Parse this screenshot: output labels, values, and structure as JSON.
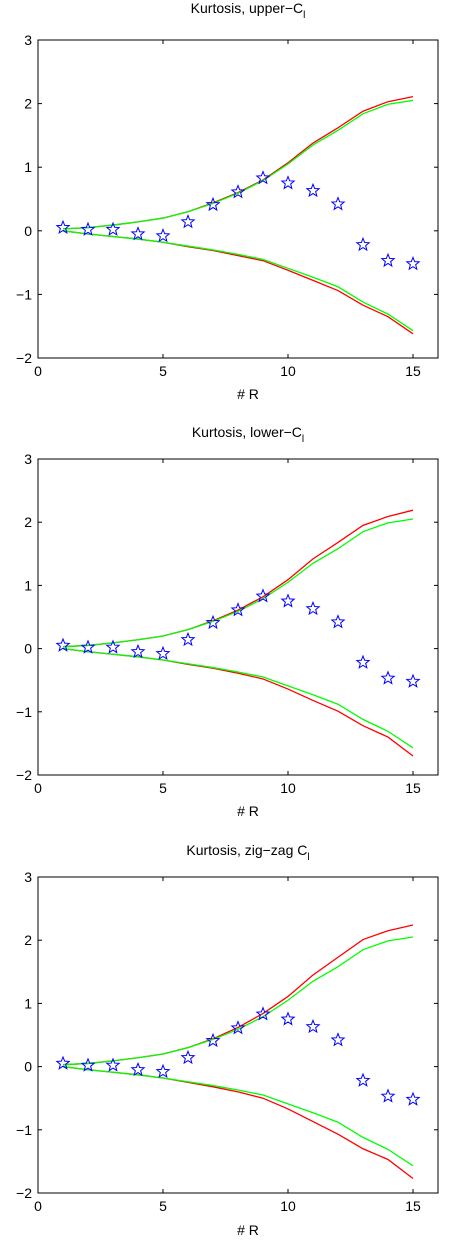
{
  "chart_data": [
    {
      "type": "line",
      "title_main": "Kurtosis, upper−C",
      "title_sub": "l",
      "xlabel": "# R",
      "xlim": [
        0,
        16
      ],
      "ylim": [
        -2,
        3
      ],
      "x_ticks": [
        "0",
        "5",
        "10",
        "15"
      ],
      "y_ticks": [
        "−2",
        "−1",
        "0",
        "1",
        "2",
        "3"
      ],
      "x_tick_values": [
        0,
        5,
        10,
        15
      ],
      "y_tick_values": [
        -2,
        -1,
        0,
        1,
        2,
        3
      ],
      "x": [
        1,
        2,
        3,
        4,
        5,
        6,
        7,
        8,
        9,
        10,
        11,
        12,
        13,
        14,
        15
      ],
      "series": [
        {
          "type": "line",
          "color": "#ff0000",
          "values": [
            0.03,
            0.05,
            0.09,
            0.14,
            0.2,
            0.3,
            0.44,
            0.6,
            0.8,
            1.07,
            1.38,
            1.62,
            1.88,
            2.03,
            2.11
          ]
        },
        {
          "type": "line",
          "color": "#00ff00",
          "values": [
            0.03,
            0.05,
            0.09,
            0.14,
            0.2,
            0.3,
            0.43,
            0.59,
            0.79,
            1.05,
            1.35,
            1.58,
            1.84,
            1.99,
            2.05
          ]
        },
        {
          "type": "line",
          "color": "#ff0000",
          "values": [
            0.0,
            -0.05,
            -0.09,
            -0.13,
            -0.18,
            -0.25,
            -0.31,
            -0.39,
            -0.47,
            -0.62,
            -0.78,
            -0.94,
            -1.17,
            -1.35,
            -1.62
          ]
        },
        {
          "type": "line",
          "color": "#00ff00",
          "values": [
            0.0,
            -0.05,
            -0.09,
            -0.13,
            -0.18,
            -0.24,
            -0.3,
            -0.37,
            -0.45,
            -0.59,
            -0.73,
            -0.88,
            -1.12,
            -1.31,
            -1.57
          ]
        },
        {
          "type": "scatter",
          "marker": "star",
          "color": "#0000ff",
          "values": [
            0.05,
            0.02,
            0.02,
            -0.05,
            -0.08,
            0.14,
            0.41,
            0.61,
            0.83,
            0.75,
            0.63,
            0.42,
            -0.22,
            -0.47,
            -0.52
          ]
        }
      ]
    },
    {
      "type": "line",
      "title_main": "Kurtosis, lower−C",
      "title_sub": "l",
      "xlabel": "# R",
      "xlim": [
        0,
        16
      ],
      "ylim": [
        -2,
        3
      ],
      "x_ticks": [
        "0",
        "5",
        "10",
        "15"
      ],
      "y_ticks": [
        "−2",
        "−1",
        "0",
        "1",
        "2",
        "3"
      ],
      "x_tick_values": [
        0,
        5,
        10,
        15
      ],
      "y_tick_values": [
        -2,
        -1,
        0,
        1,
        2,
        3
      ],
      "x": [
        1,
        2,
        3,
        4,
        5,
        6,
        7,
        8,
        9,
        10,
        11,
        12,
        13,
        14,
        15
      ],
      "series": [
        {
          "type": "line",
          "color": "#ff0000",
          "values": [
            0.03,
            0.05,
            0.09,
            0.14,
            0.2,
            0.3,
            0.44,
            0.61,
            0.82,
            1.09,
            1.42,
            1.68,
            1.95,
            2.09,
            2.19
          ]
        },
        {
          "type": "line",
          "color": "#00ff00",
          "values": [
            0.03,
            0.05,
            0.09,
            0.14,
            0.2,
            0.3,
            0.43,
            0.59,
            0.79,
            1.05,
            1.35,
            1.58,
            1.85,
            1.99,
            2.05
          ]
        },
        {
          "type": "line",
          "color": "#ff0000",
          "values": [
            0.0,
            -0.05,
            -0.09,
            -0.13,
            -0.18,
            -0.25,
            -0.31,
            -0.39,
            -0.48,
            -0.64,
            -0.82,
            -0.99,
            -1.22,
            -1.4,
            -1.7
          ]
        },
        {
          "type": "line",
          "color": "#00ff00",
          "values": [
            0.0,
            -0.05,
            -0.09,
            -0.13,
            -0.18,
            -0.24,
            -0.3,
            -0.37,
            -0.45,
            -0.59,
            -0.73,
            -0.88,
            -1.12,
            -1.31,
            -1.57
          ]
        },
        {
          "type": "scatter",
          "marker": "star",
          "color": "#0000ff",
          "values": [
            0.05,
            0.02,
            0.02,
            -0.05,
            -0.08,
            0.14,
            0.41,
            0.61,
            0.83,
            0.75,
            0.63,
            0.42,
            -0.22,
            -0.47,
            -0.52
          ]
        }
      ]
    },
    {
      "type": "line",
      "title_main": "Kurtosis, zig−zag C",
      "title_sub": "l",
      "xlabel": "# R",
      "xlim": [
        0,
        16
      ],
      "ylim": [
        -2,
        3
      ],
      "x_ticks": [
        "0",
        "5",
        "10",
        "15"
      ],
      "y_ticks": [
        "−2",
        "−1",
        "0",
        "1",
        "2",
        "3"
      ],
      "x_tick_values": [
        0,
        5,
        10,
        15
      ],
      "y_tick_values": [
        -2,
        -1,
        0,
        1,
        2,
        3
      ],
      "x": [
        1,
        2,
        3,
        4,
        5,
        6,
        7,
        8,
        9,
        10,
        11,
        12,
        13,
        14,
        15
      ],
      "series": [
        {
          "type": "line",
          "color": "#ff0000",
          "values": [
            0.03,
            0.05,
            0.09,
            0.14,
            0.2,
            0.3,
            0.44,
            0.62,
            0.84,
            1.11,
            1.45,
            1.73,
            2.01,
            2.15,
            2.24
          ]
        },
        {
          "type": "line",
          "color": "#00ff00",
          "values": [
            0.03,
            0.05,
            0.09,
            0.14,
            0.2,
            0.3,
            0.43,
            0.59,
            0.79,
            1.05,
            1.35,
            1.58,
            1.85,
            1.99,
            2.05
          ]
        },
        {
          "type": "line",
          "color": "#ff0000",
          "values": [
            0.0,
            -0.05,
            -0.09,
            -0.13,
            -0.18,
            -0.25,
            -0.32,
            -0.4,
            -0.5,
            -0.67,
            -0.87,
            -1.07,
            -1.3,
            -1.47,
            -1.77
          ]
        },
        {
          "type": "line",
          "color": "#00ff00",
          "values": [
            0.0,
            -0.05,
            -0.09,
            -0.13,
            -0.18,
            -0.24,
            -0.3,
            -0.37,
            -0.45,
            -0.59,
            -0.73,
            -0.88,
            -1.12,
            -1.31,
            -1.57
          ]
        },
        {
          "type": "scatter",
          "marker": "star",
          "color": "#0000ff",
          "values": [
            0.05,
            0.02,
            0.02,
            -0.05,
            -0.08,
            0.14,
            0.41,
            0.61,
            0.83,
            0.75,
            0.63,
            0.42,
            -0.22,
            -0.47,
            -0.52
          ]
        }
      ]
    }
  ]
}
